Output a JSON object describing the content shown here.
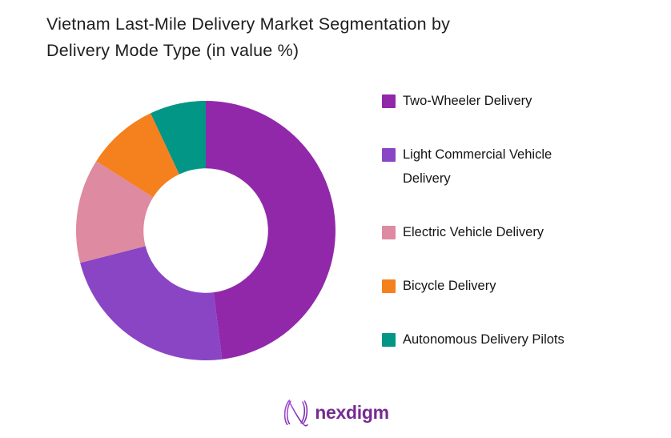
{
  "header": {
    "title_line1": "Vietnam Last-Mile Delivery Market Segmentation by",
    "title_line2": "Delivery Mode Type (in value %)"
  },
  "chart_data": {
    "type": "pie",
    "subtype": "donut",
    "title": "Vietnam Last-Mile Delivery Market Segmentation by Delivery Mode Type (in value %)",
    "labels": [
      "Two-Wheeler Delivery",
      "Light Commercial Vehicle Delivery",
      "Electric Vehicle Delivery",
      "Bicycle Delivery",
      "Autonomous Delivery Pilots"
    ],
    "values": [
      48,
      23,
      13,
      9,
      7
    ],
    "colors": [
      "#9128aa",
      "#8a45c5",
      "#de8aa0",
      "#f5801e",
      "#019685"
    ],
    "start_angle_deg": 0,
    "direction": "clockwise",
    "inner_radius_ratio": 0.48,
    "legend_position": "right",
    "data_labels_shown": false,
    "background_color": "#ffffff"
  },
  "footer": {
    "logo_text": "nexdigm"
  }
}
